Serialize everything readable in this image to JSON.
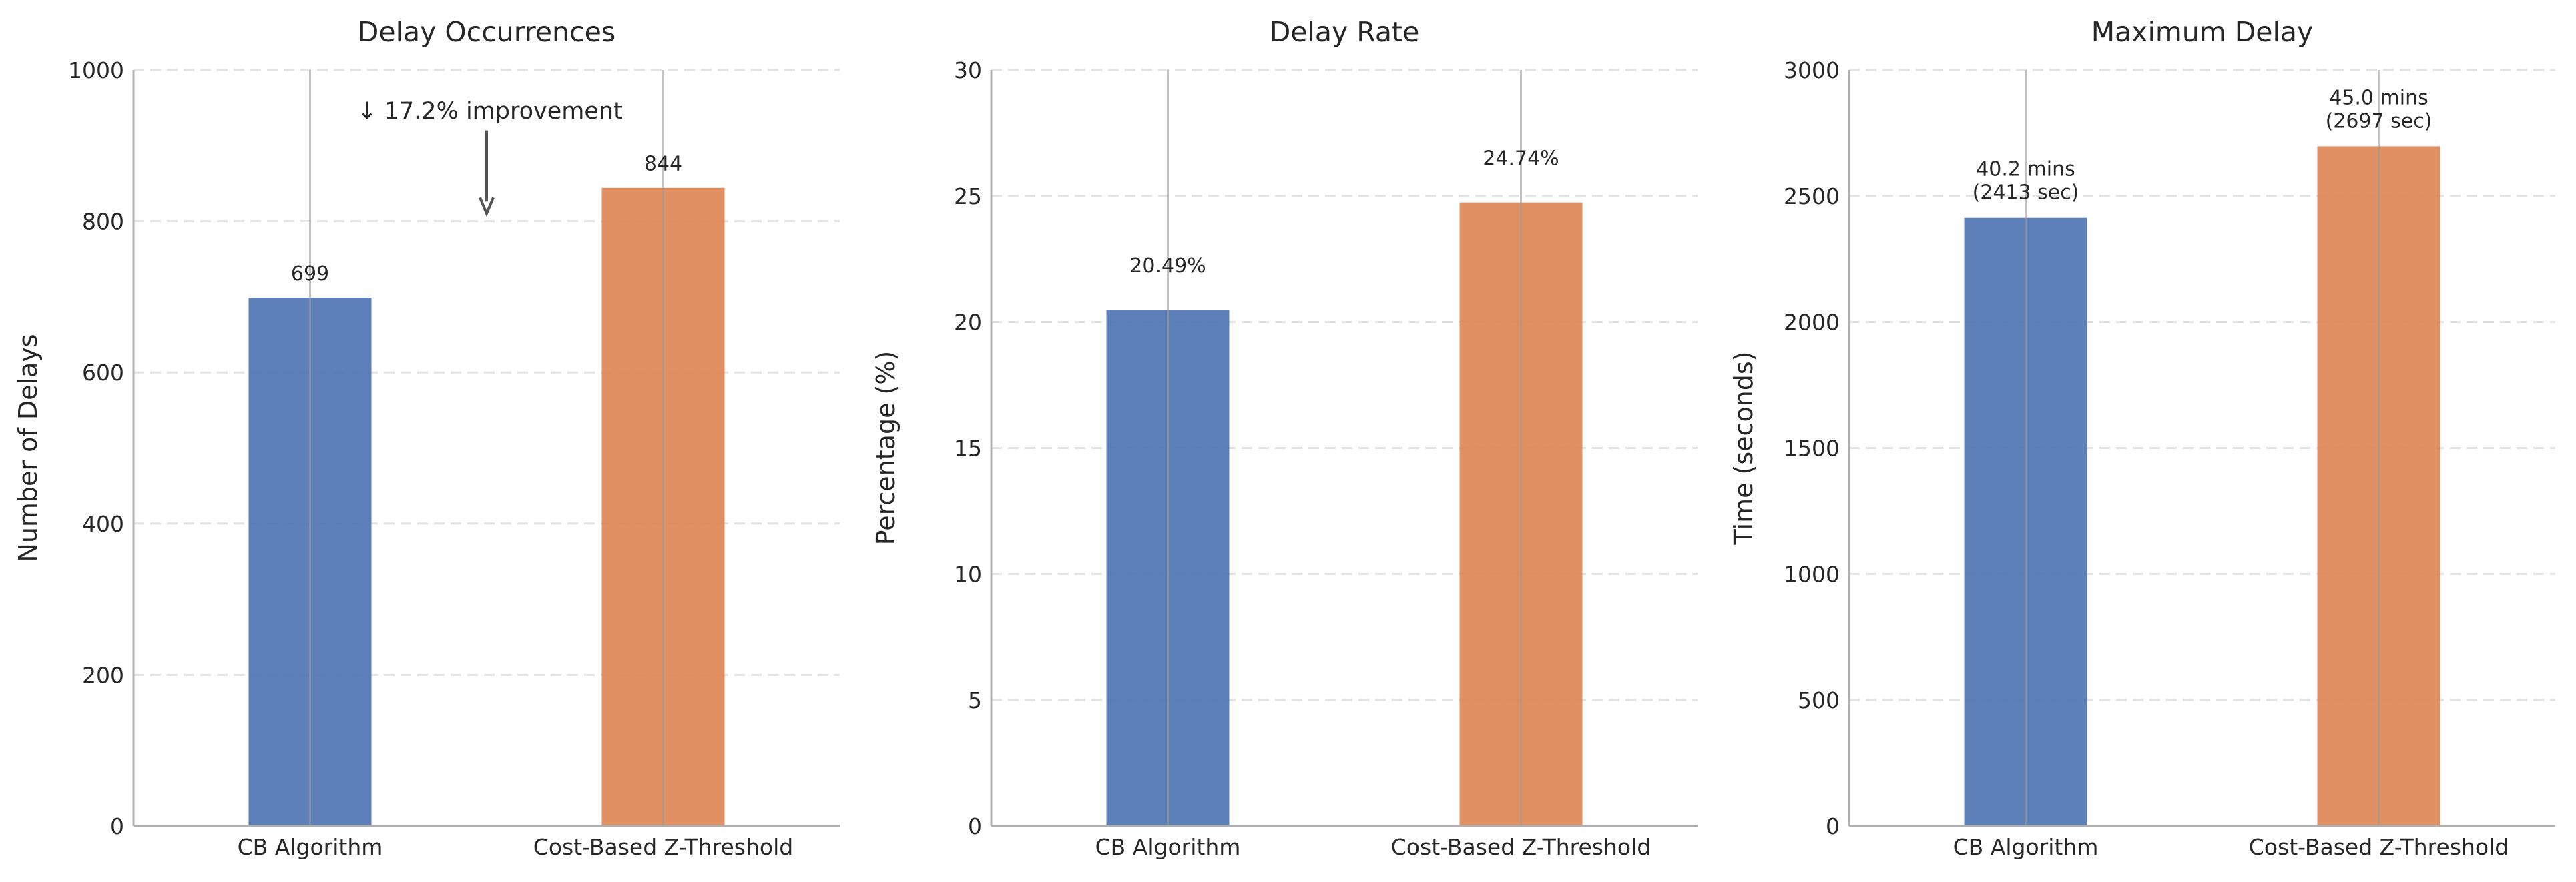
{
  "colors": {
    "blue": "#4c72b0",
    "orange": "#dd8452",
    "grid": "#e3e3e3",
    "axis": "#b0b0b0",
    "arrow": "#555555"
  },
  "chart_data": [
    {
      "type": "bar",
      "title": "Delay Occurrences",
      "xlabel": "",
      "ylabel": "Number of Delays",
      "categories": [
        "CB Algorithm",
        "Cost-Based Z-Threshold"
      ],
      "values": [
        699,
        844
      ],
      "data_labels": [
        [
          "699"
        ],
        [
          "844"
        ]
      ],
      "yticks": [
        0,
        200,
        400,
        600,
        800,
        1000
      ],
      "ylim": [
        0,
        1000
      ],
      "grid": "y-dashed",
      "annotation": {
        "text": "↓ 17.2% improvement",
        "arrow_tail_y": 920,
        "arrow_head_y": 810,
        "x_between": 0.5
      }
    },
    {
      "type": "bar",
      "title": "Delay Rate",
      "xlabel": "",
      "ylabel": "Percentage (%)",
      "categories": [
        "CB Algorithm",
        "Cost-Based Z-Threshold"
      ],
      "values": [
        20.49,
        24.74
      ],
      "data_labels": [
        [
          "20.49%"
        ],
        [
          "24.74%"
        ]
      ],
      "yticks": [
        0,
        5,
        10,
        15,
        20,
        25,
        30
      ],
      "ylim": [
        0,
        30
      ],
      "grid": "y-dashed"
    },
    {
      "type": "bar",
      "title": "Maximum Delay",
      "xlabel": "",
      "ylabel": "Time (seconds)",
      "categories": [
        "CB Algorithm",
        "Cost-Based Z-Threshold"
      ],
      "values": [
        2413,
        2697
      ],
      "data_labels": [
        [
          "40.2 mins",
          "(2413 sec)"
        ],
        [
          "45.0 mins",
          "(2697 sec)"
        ]
      ],
      "yticks": [
        0,
        500,
        1000,
        1500,
        2000,
        2500,
        3000
      ],
      "ylim": [
        0,
        3000
      ],
      "grid": "y-dashed"
    }
  ]
}
